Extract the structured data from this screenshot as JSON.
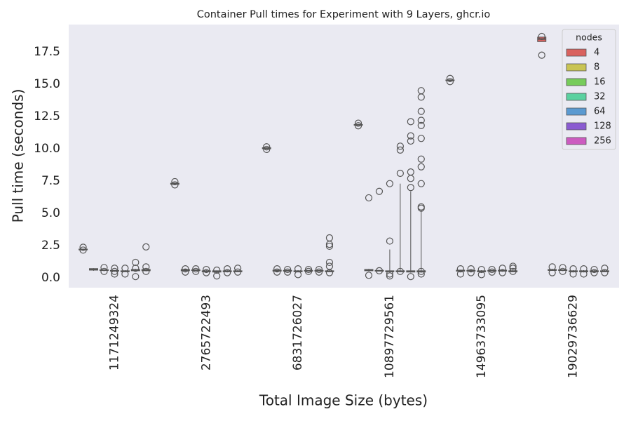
{
  "chart_data": {
    "type": "boxplot",
    "title": "Container Pull times for Experiment with 9 Layers, ghcr.io",
    "x_label": "Total Image Size (bytes)",
    "y_label": "Pull time (seconds)",
    "categories": [
      "1171249324",
      "2765722493",
      "6831726027",
      "10897729561",
      "14963733095",
      "19029736629"
    ],
    "ylim": [
      -0.76,
      19.62
    ],
    "yticks": [
      {
        "value": 0,
        "label": "0.0"
      },
      2.5,
      {
        "value": 5,
        "label": "5.0"
      },
      7.5,
      {
        "value": 10,
        "label": "10.0"
      },
      12.5,
      {
        "value": 15,
        "label": "15.0"
      },
      17.5
    ],
    "grid": false,
    "legend_title": "nodes",
    "legend_position": "upper right",
    "series": [
      {
        "name": "4",
        "color": "#d9625f",
        "boxes": [
          {
            "whislo": 2.15,
            "q1": 2.17,
            "med": 2.2,
            "q3": 2.23,
            "whishi": 2.25,
            "fliers": [
              2.37,
              2.15
            ]
          },
          {
            "whislo": 7.2,
            "q1": 7.25,
            "med": 7.3,
            "q3": 7.33,
            "whishi": 7.38,
            "fliers": [
              7.45,
              7.2
            ]
          },
          {
            "whislo": 9.97,
            "q1": 10.0,
            "med": 10.05,
            "q3": 10.08,
            "whishi": 10.12,
            "fliers": [
              10.15,
              9.95
            ]
          },
          {
            "whislo": 11.8,
            "q1": 11.83,
            "med": 11.85,
            "q3": 11.88,
            "whishi": 11.92,
            "fliers": [
              11.98,
              11.78
            ]
          },
          {
            "whislo": 15.25,
            "q1": 15.28,
            "med": 15.3,
            "q3": 15.33,
            "whishi": 15.38,
            "fliers": [
              15.45,
              15.2
            ]
          },
          {
            "whislo": 18.3,
            "q1": 18.3,
            "med": 18.5,
            "q3": 18.65,
            "whishi": 18.65,
            "fliers": [
              18.7,
              17.25
            ]
          }
        ]
      },
      {
        "name": "8",
        "color": "#c9c454",
        "boxes": [
          {
            "whislo": 0.55,
            "q1": 0.6,
            "med": 0.65,
            "q3": 0.72,
            "whishi": 0.75,
            "fliers": []
          },
          {
            "whislo": 0.5,
            "q1": 0.55,
            "med": 0.6,
            "q3": 0.65,
            "whishi": 0.68,
            "fliers": [
              0.7,
              0.45
            ]
          },
          {
            "whislo": 0.5,
            "q1": 0.52,
            "med": 0.55,
            "q3": 0.6,
            "whishi": 0.63,
            "fliers": [
              0.7,
              0.45
            ]
          },
          {
            "whislo": 0.5,
            "q1": 0.55,
            "med": 0.6,
            "q3": 0.65,
            "whishi": 0.7,
            "fliers": [
              6.2,
              0.2
            ]
          },
          {
            "whislo": 0.5,
            "q1": 0.52,
            "med": 0.55,
            "q3": 0.6,
            "whishi": 0.63,
            "fliers": [
              0.7,
              0.3
            ]
          },
          {
            "whislo": 0.55,
            "q1": 0.58,
            "med": 0.6,
            "q3": 0.65,
            "whishi": 0.7,
            "fliers": [
              0.85,
              0.4
            ]
          }
        ]
      },
      {
        "name": "16",
        "color": "#77cc5b",
        "boxes": [
          {
            "whislo": 0.55,
            "q1": 0.57,
            "med": 0.6,
            "q3": 0.63,
            "whishi": 0.65,
            "fliers": [
              0.8,
              0.5
            ]
          },
          {
            "whislo": 0.55,
            "q1": 0.57,
            "med": 0.6,
            "q3": 0.62,
            "whishi": 0.65,
            "fliers": [
              0.7,
              0.5
            ]
          },
          {
            "whislo": 0.5,
            "q1": 0.52,
            "med": 0.55,
            "q3": 0.58,
            "whishi": 0.6,
            "fliers": [
              0.65,
              0.45
            ]
          },
          {
            "whislo": 0.5,
            "q1": 0.52,
            "med": 0.55,
            "q3": 0.58,
            "whishi": 0.6,
            "fliers": [
              6.7,
              0.55
            ]
          },
          {
            "whislo": 0.5,
            "q1": 0.52,
            "med": 0.55,
            "q3": 0.58,
            "whishi": 0.6,
            "fliers": [
              0.7,
              0.4
            ]
          },
          {
            "whislo": 0.55,
            "q1": 0.57,
            "med": 0.6,
            "q3": 0.63,
            "whishi": 0.65,
            "fliers": [
              0.8,
              0.5
            ]
          }
        ]
      },
      {
        "name": "32",
        "color": "#5bd1a0",
        "boxes": [
          {
            "whislo": 0.5,
            "q1": 0.52,
            "med": 0.55,
            "q3": 0.58,
            "whishi": 0.6,
            "fliers": [
              0.75,
              0.5,
              0.3
            ]
          },
          {
            "whislo": 0.45,
            "q1": 0.48,
            "med": 0.5,
            "q3": 0.55,
            "whishi": 0.6,
            "fliers": [
              0.65,
              0.4
            ]
          },
          {
            "whislo": 0.45,
            "q1": 0.48,
            "med": 0.5,
            "q3": 0.55,
            "whishi": 0.6,
            "fliers": [
              0.7,
              0.25
            ]
          },
          {
            "whislo": 0.45,
            "q1": 0.48,
            "med": 0.5,
            "q3": 0.55,
            "whishi": 2.2,
            "fliers": [
              7.3,
              2.85,
              0.3,
              0.15
            ]
          },
          {
            "whislo": 0.45,
            "q1": 0.48,
            "med": 0.5,
            "q3": 0.55,
            "whishi": 0.6,
            "fliers": [
              0.65,
              0.25
            ]
          },
          {
            "whislo": 0.45,
            "q1": 0.48,
            "med": 0.5,
            "q3": 0.55,
            "whishi": 0.6,
            "fliers": [
              0.7,
              0.3
            ]
          }
        ]
      },
      {
        "name": "64",
        "color": "#5b9ad1",
        "boxes": [
          {
            "whislo": 0.45,
            "q1": 0.48,
            "med": 0.5,
            "q3": 0.55,
            "whishi": 0.6,
            "fliers": [
              0.75,
              0.3
            ]
          },
          {
            "whislo": 0.4,
            "q1": 0.45,
            "med": 0.5,
            "q3": 0.55,
            "whishi": 0.58,
            "fliers": [
              0.6,
              0.15
            ]
          },
          {
            "whislo": 0.5,
            "q1": 0.52,
            "med": 0.55,
            "q3": 0.58,
            "whishi": 0.6,
            "fliers": [
              0.65,
              0.5
            ]
          },
          {
            "whislo": 0.45,
            "q1": 0.48,
            "med": 0.5,
            "q3": 0.55,
            "whishi": 7.3,
            "fliers": [
              10.2,
              9.9,
              8.1,
              0.5
            ]
          },
          {
            "whislo": 0.5,
            "q1": 0.52,
            "med": 0.55,
            "q3": 0.58,
            "whishi": 0.6,
            "fliers": [
              0.65,
              0.45
            ]
          },
          {
            "whislo": 0.45,
            "q1": 0.48,
            "med": 0.5,
            "q3": 0.55,
            "whishi": 0.6,
            "fliers": [
              0.7,
              0.3
            ]
          }
        ]
      },
      {
        "name": "128",
        "color": "#8a5bd1",
        "boxes": [
          {
            "whislo": 0.5,
            "q1": 0.55,
            "med": 0.6,
            "q3": 0.65,
            "whishi": 0.7,
            "fliers": [
              1.2,
              0.75,
              0.1
            ]
          },
          {
            "whislo": 0.45,
            "q1": 0.48,
            "med": 0.5,
            "q3": 0.55,
            "whishi": 0.6,
            "fliers": [
              0.7,
              0.4
            ]
          },
          {
            "whislo": 0.5,
            "q1": 0.52,
            "med": 0.55,
            "q3": 0.58,
            "whishi": 0.6,
            "fliers": [
              0.65,
              0.45
            ]
          },
          {
            "whislo": 0.4,
            "q1": 0.45,
            "med": 0.5,
            "q3": 0.55,
            "whishi": 6.7,
            "fliers": [
              12.1,
              11.0,
              10.6,
              8.2,
              7.7,
              7.0,
              0.1
            ]
          },
          {
            "whislo": 0.5,
            "q1": 0.52,
            "med": 0.55,
            "q3": 0.6,
            "whishi": 0.65,
            "fliers": [
              0.75,
              0.4
            ]
          },
          {
            "whislo": 0.45,
            "q1": 0.48,
            "med": 0.5,
            "q3": 0.55,
            "whishi": 0.6,
            "fliers": [
              0.65,
              0.4
            ]
          }
        ]
      },
      {
        "name": "256",
        "color": "#cc5bc0",
        "boxes": [
          {
            "whislo": 0.5,
            "q1": 0.55,
            "med": 0.6,
            "q3": 0.65,
            "whishi": 0.7,
            "fliers": [
              2.4,
              0.85,
              0.5
            ]
          },
          {
            "whislo": 0.45,
            "q1": 0.48,
            "med": 0.5,
            "q3": 0.55,
            "whishi": 0.6,
            "fliers": [
              0.75,
              0.45
            ]
          },
          {
            "whislo": 0.45,
            "q1": 0.48,
            "med": 0.5,
            "q3": 0.55,
            "whishi": 0.7,
            "fliers": [
              3.1,
              2.6,
              2.45,
              1.2,
              0.9,
              0.4
            ]
          },
          {
            "whislo": 0.4,
            "q1": 0.45,
            "med": 0.5,
            "q3": 0.55,
            "whishi": 5.3,
            "fliers": [
              14.5,
              14.0,
              12.9,
              12.2,
              11.8,
              10.8,
              9.2,
              8.6,
              7.3,
              5.5,
              5.4,
              0.5,
              0.3
            ]
          },
          {
            "whislo": 0.45,
            "q1": 0.48,
            "med": 0.5,
            "q3": 0.55,
            "whishi": 0.65,
            "fliers": [
              0.9,
              0.75,
              0.5
            ]
          },
          {
            "whislo": 0.45,
            "q1": 0.48,
            "med": 0.5,
            "q3": 0.55,
            "whishi": 0.6,
            "fliers": [
              0.75,
              0.4
            ]
          }
        ]
      }
    ]
  }
}
